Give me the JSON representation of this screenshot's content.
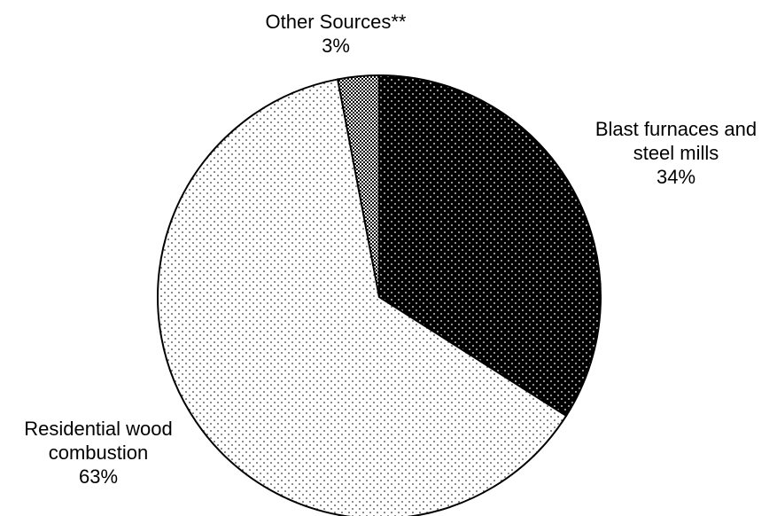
{
  "chart_data": {
    "type": "pie",
    "title": "",
    "slices": [
      {
        "name_lines": [
          "Blast furnaces and",
          "steel mills"
        ],
        "percent_label": "34%",
        "value": 34,
        "pattern": "dots-on-black"
      },
      {
        "name_lines": [
          "Residential wood",
          "combustion"
        ],
        "percent_label": "63%",
        "value": 63,
        "pattern": "dots-on-white"
      },
      {
        "name_lines": [
          "Other Sources**"
        ],
        "percent_label": "3%",
        "value": 3,
        "pattern": "dense-checker"
      }
    ],
    "start_angle_deg": 0,
    "direction": "clockwise",
    "legend": "none",
    "colors": {
      "dark": "#000000",
      "light": "#ffffff",
      "outline": "#000000"
    }
  }
}
